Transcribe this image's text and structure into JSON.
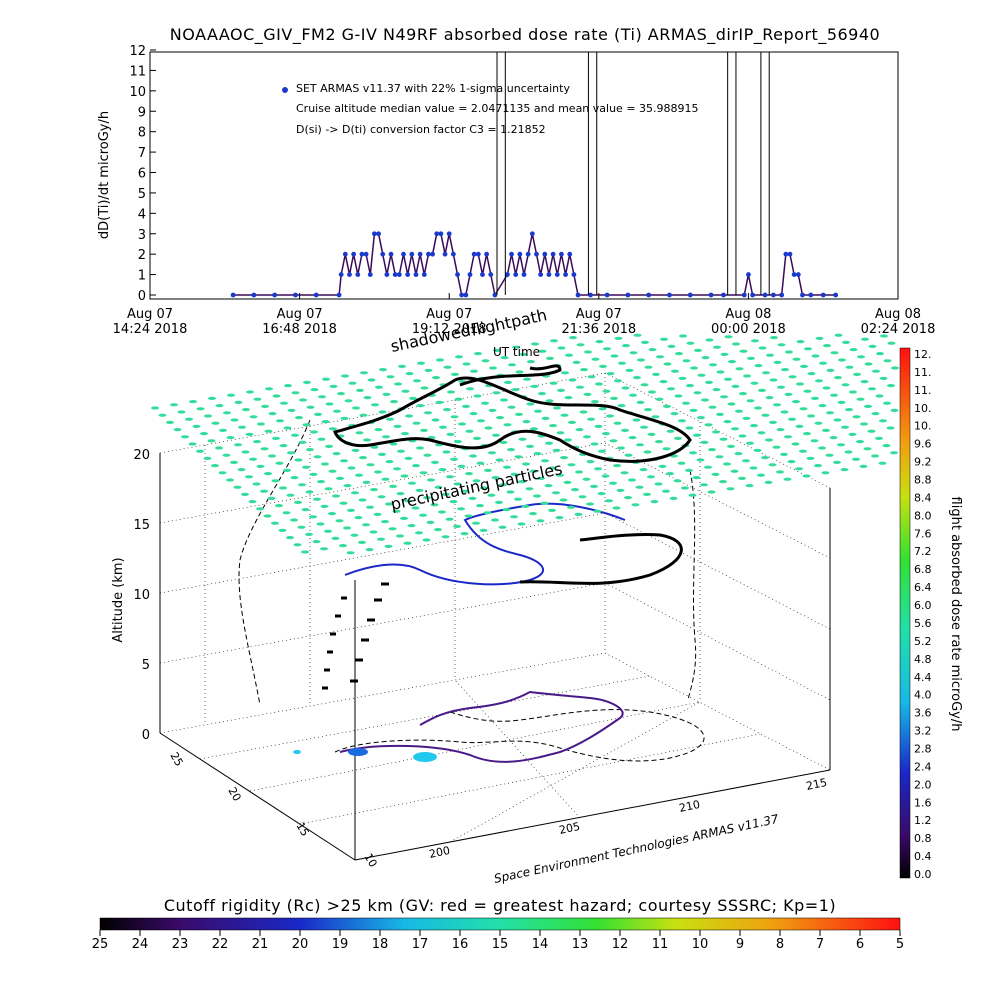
{
  "chart_data": [
    {
      "type": "line",
      "title": "NOAAAOC_GIV_FM2 G-IV    N49RF  absorbed dose rate (Ti) ARMAS_dirIP_Report_56940",
      "ylabel": "dD(Ti)/dt microGy/h",
      "xlabel": "UT time",
      "ylim": [
        0,
        12
      ],
      "yticks": [
        "0",
        "1",
        "2",
        "3",
        "4",
        "5",
        "6",
        "7",
        "8",
        "9",
        "10",
        "11",
        "12"
      ],
      "xticks": [
        {
          "line1": "Aug 07",
          "line2": "14:24 2018"
        },
        {
          "line1": "Aug 07",
          "line2": "16:48 2018"
        },
        {
          "line1": "Aug 07",
          "line2": "19:12 2018"
        },
        {
          "line1": "Aug 07",
          "line2": "21:36 2018"
        },
        {
          "line1": "Aug 08",
          "line2": "00:00 2018"
        },
        {
          "line1": "Aug 08",
          "line2": "02:24 2018"
        }
      ],
      "x_range_hours": [
        0,
        12
      ],
      "legend": [
        "SET ARMAS v11.37 with 22% 1-sigma uncertainty",
        "Cruise altitude median value = 2.0471135 and mean value = 35.988915",
        "D(si) -> D(ti) conversion factor C3 = 1.21852"
      ],
      "series": [
        {
          "points": [
            [
              2.0,
              0
            ],
            [
              2.5,
              0
            ],
            [
              3.0,
              0
            ],
            [
              3.5,
              0
            ],
            [
              4.0,
              0
            ],
            [
              4.55,
              0
            ],
            [
              4.6,
              1
            ],
            [
              4.7,
              2
            ],
            [
              4.8,
              1
            ],
            [
              4.9,
              2
            ],
            [
              5.0,
              1
            ],
            [
              5.1,
              2
            ],
            [
              5.2,
              2
            ],
            [
              5.3,
              1
            ],
            [
              5.4,
              3
            ],
            [
              5.5,
              3
            ],
            [
              5.6,
              2
            ],
            [
              5.7,
              1
            ],
            [
              5.8,
              2
            ],
            [
              5.9,
              1
            ],
            [
              6.0,
              1
            ],
            [
              6.1,
              2
            ],
            [
              6.2,
              1
            ],
            [
              6.3,
              2
            ],
            [
              6.4,
              1
            ],
            [
              6.5,
              2
            ],
            [
              6.6,
              1
            ],
            [
              6.7,
              2
            ],
            [
              6.8,
              2
            ],
            [
              6.9,
              3
            ],
            [
              7.0,
              3
            ],
            [
              7.1,
              2
            ],
            [
              7.2,
              3
            ],
            [
              7.3,
              2
            ],
            [
              7.4,
              1
            ],
            [
              7.5,
              0
            ],
            [
              7.6,
              0
            ],
            [
              7.7,
              1
            ],
            [
              7.8,
              2
            ],
            [
              7.9,
              2
            ],
            [
              8.0,
              1
            ],
            [
              8.1,
              2
            ],
            [
              8.2,
              1
            ],
            [
              8.3,
              0
            ],
            [
              8.6,
              1
            ],
            [
              8.7,
              2
            ],
            [
              8.8,
              1
            ],
            [
              8.9,
              2
            ],
            [
              9.0,
              1
            ],
            [
              9.1,
              2
            ],
            [
              9.2,
              3
            ],
            [
              9.3,
              2
            ],
            [
              9.4,
              1
            ],
            [
              9.5,
              2
            ],
            [
              9.6,
              1
            ],
            [
              9.7,
              2
            ],
            [
              9.8,
              1
            ],
            [
              9.9,
              2
            ],
            [
              10.0,
              1
            ],
            [
              10.1,
              2
            ],
            [
              10.2,
              1
            ],
            [
              10.3,
              0
            ],
            [
              10.6,
              0
            ],
            [
              11.0,
              0
            ],
            [
              11.5,
              0
            ],
            [
              12.0,
              0
            ],
            [
              12.5,
              0
            ],
            [
              13.0,
              0
            ],
            [
              13.5,
              0
            ],
            [
              13.8,
              0
            ],
            [
              14.3,
              0
            ],
            [
              14.4,
              1
            ],
            [
              14.5,
              0
            ],
            [
              14.8,
              0
            ],
            [
              15.0,
              0
            ],
            [
              15.2,
              0
            ],
            [
              15.3,
              2
            ],
            [
              15.4,
              2
            ],
            [
              15.5,
              1
            ],
            [
              15.6,
              1
            ],
            [
              15.7,
              0
            ],
            [
              15.9,
              0
            ],
            [
              16.2,
              0
            ],
            [
              16.5,
              0
            ]
          ],
          "spikes_hours": [
            8.35,
            8.55,
            10.55,
            10.75,
            13.9,
            14.1,
            14.7,
            14.9
          ]
        }
      ]
    },
    {
      "type": "scatter",
      "subtitle_labels": [
        "shadowed",
        "flightpath",
        "UT time",
        "precipitating particles"
      ],
      "zlabel": "Altitude (km)",
      "zticks": [
        "0",
        "5",
        "10",
        "15",
        "20"
      ],
      "yticks": [
        "25",
        "20",
        "15",
        "10"
      ],
      "xticks": [
        "200",
        "205",
        "210",
        "215"
      ],
      "credit": "Space Environment Technologies ARMAS v11.37",
      "colorbar_label": "flight absorbed dose rate microGy/h",
      "colorbar_ticks": [
        "0.0",
        "0.4",
        "0.8",
        "1.2",
        "1.6",
        "2.0",
        "2.4",
        "2.8",
        "3.2",
        "3.6",
        "4.0",
        "4.4",
        "4.8",
        "5.2",
        "5.6",
        "6.0",
        "6.4",
        "6.8",
        "7.2",
        "7.6",
        "8.0",
        "8.4",
        "8.8",
        "9.2",
        "9.6",
        "10.",
        "10.",
        "11.",
        "11.",
        "12."
      ],
      "cutoff_title": "Cutoff rigidity (Rc) >25 km (GV: red = greatest hazard; courtesy SSSRC; Kp=1)",
      "cutoff_ticks": [
        "25",
        "24",
        "23",
        "22",
        "21",
        "20",
        "19",
        "18",
        "17",
        "16",
        "15",
        "14",
        "13",
        "12",
        "11",
        "10",
        "9",
        "8",
        "7",
        "6",
        "5"
      ]
    }
  ],
  "colors": {
    "dose_line": "#3a0a5a",
    "dose_marker": "#1a3acc",
    "particle_grid": "#33dd99",
    "flightpath": "#000000"
  }
}
